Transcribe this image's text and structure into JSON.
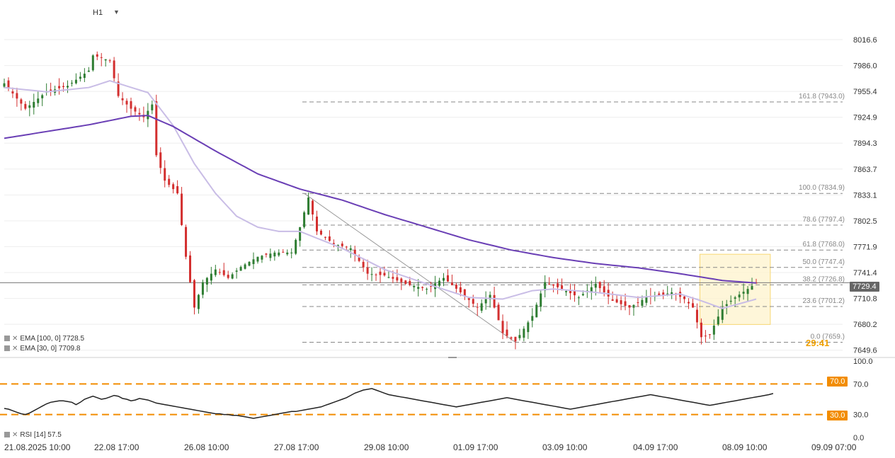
{
  "toolbar": {
    "timeframe": "H1"
  },
  "legend": {
    "ema100": "EMA  [100,  0]  7728.5",
    "ema30": "EMA  [30,  0]  7709.8",
    "rsi": "RSI  [14]  57.5"
  },
  "colors": {
    "bull": "#2e7d32",
    "bear": "#d32f2f",
    "ema100": "#6a3fb5",
    "ema30": "#c9bde6",
    "rsi": "#222222",
    "rsi_level": "#f28c00",
    "fib": "#888888",
    "highlight": "#f7d774"
  },
  "current_price": "7729.4",
  "chart_data": [
    {
      "type": "candlestick",
      "y_ticks": [
        "8016.6",
        "7986.0",
        "7955.4",
        "7924.9",
        "7894.3",
        "7863.7",
        "7833.1",
        "7802.5",
        "7771.9",
        "7741.4",
        "7710.8",
        "7680.2",
        "7649.6"
      ],
      "ylim": [
        7641,
        8030
      ],
      "x_tick_labels": [
        "21.08.2025  10:00",
        "22.08  17:00",
        "26.08  10:00",
        "27.08  17:00",
        "29.08  10:00",
        "01.09  17:00",
        "03.09  10:00",
        "04.09  17:00",
        "08.09  10:00",
        "09.09  07:00"
      ],
      "fibonacci": [
        {
          "label": "161.8 (7943.0)",
          "value": 7943.0
        },
        {
          "label": "100.0 (7834.9)",
          "value": 7834.9
        },
        {
          "label": "78.6 (7797.4)",
          "value": 7797.4
        },
        {
          "label": "61.8 (7768.0)",
          "value": 7768.0
        },
        {
          "label": "50.0 (7747.4)",
          "value": 7747.4
        },
        {
          "label": "38.2 (7726.8)",
          "value": 7726.8
        },
        {
          "label": "23.6 (7701.2)",
          "value": 7701.2
        },
        {
          "label": "0.0 (7659.)",
          "value": 7659.0
        }
      ],
      "ema100_anchors": [
        [
          0,
          7900
        ],
        [
          10,
          7908
        ],
        [
          20,
          7916
        ],
        [
          30,
          7926
        ],
        [
          34,
          7927
        ],
        [
          40,
          7914
        ],
        [
          50,
          7885
        ],
        [
          60,
          7858
        ],
        [
          70,
          7840
        ],
        [
          80,
          7827
        ],
        [
          90,
          7810
        ],
        [
          100,
          7795
        ],
        [
          110,
          7780
        ],
        [
          120,
          7768
        ],
        [
          130,
          7759
        ],
        [
          140,
          7752
        ],
        [
          150,
          7747
        ],
        [
          160,
          7740
        ],
        [
          170,
          7732
        ],
        [
          178,
          7729
        ]
      ],
      "ema30_anchors": [
        [
          0,
          7960
        ],
        [
          10,
          7955
        ],
        [
          20,
          7960
        ],
        [
          25,
          7968
        ],
        [
          34,
          7954
        ],
        [
          40,
          7915
        ],
        [
          45,
          7870
        ],
        [
          50,
          7835
        ],
        [
          55,
          7808
        ],
        [
          60,
          7795
        ],
        [
          65,
          7790
        ],
        [
          70,
          7790
        ],
        [
          80,
          7770
        ],
        [
          90,
          7745
        ],
        [
          100,
          7728
        ],
        [
          110,
          7712
        ],
        [
          118,
          7710
        ],
        [
          125,
          7720
        ],
        [
          130,
          7722
        ],
        [
          140,
          7718
        ],
        [
          150,
          7712
        ],
        [
          160,
          7716
        ],
        [
          165,
          7708
        ],
        [
          170,
          7699
        ],
        [
          178,
          7710
        ]
      ],
      "price_anchors": [
        [
          0,
          7965
        ],
        [
          5,
          7935
        ],
        [
          10,
          7955
        ],
        [
          15,
          7962
        ],
        [
          20,
          7980
        ],
        [
          21,
          7998
        ],
        [
          25,
          7992
        ],
        [
          27,
          7950
        ],
        [
          30,
          7935
        ],
        [
          33,
          7925
        ],
        [
          35,
          7940
        ],
        [
          36,
          7880
        ],
        [
          38,
          7850
        ],
        [
          41,
          7835
        ],
        [
          43,
          7760
        ],
        [
          45,
          7700
        ],
        [
          47,
          7730
        ],
        [
          50,
          7745
        ],
        [
          53,
          7735
        ],
        [
          56,
          7748
        ],
        [
          60,
          7760
        ],
        [
          64,
          7765
        ],
        [
          68,
          7765
        ],
        [
          70,
          7795
        ],
        [
          72,
          7830
        ],
        [
          74,
          7790
        ],
        [
          78,
          7775
        ],
        [
          82,
          7770
        ],
        [
          86,
          7740
        ],
        [
          90,
          7738
        ],
        [
          95,
          7728
        ],
        [
          100,
          7722
        ],
        [
          104,
          7735
        ],
        [
          108,
          7718
        ],
        [
          112,
          7700
        ],
        [
          115,
          7715
        ],
        [
          118,
          7670
        ],
        [
          121,
          7660
        ],
        [
          125,
          7690
        ],
        [
          128,
          7730
        ],
        [
          132,
          7722
        ],
        [
          136,
          7712
        ],
        [
          140,
          7728
        ],
        [
          144,
          7708
        ],
        [
          148,
          7700
        ],
        [
          152,
          7712
        ],
        [
          156,
          7715
        ],
        [
          158,
          7718
        ],
        [
          161,
          7710
        ],
        [
          163,
          7700
        ],
        [
          165,
          7665
        ],
        [
          167,
          7668
        ],
        [
          170,
          7700
        ],
        [
          173,
          7712
        ],
        [
          176,
          7722
        ],
        [
          178,
          7729
        ]
      ],
      "highlight_box": {
        "from_index": 165,
        "to_index": 181,
        "y_top": 7763,
        "y_bottom": 7680,
        "label": "29:41"
      }
    },
    {
      "type": "line",
      "name": "RSI",
      "ylim": [
        0,
        100
      ],
      "y_ticks": [
        "100.0",
        "70.0",
        "30.0",
        "0.0"
      ],
      "levels": [
        70.0,
        30.0
      ],
      "level_labels": [
        "70.0",
        "30.0"
      ],
      "values": [
        38,
        37,
        35,
        33,
        31,
        30,
        32,
        35,
        38,
        41,
        44,
        46,
        47,
        48,
        48,
        47,
        46,
        43,
        46,
        50,
        52,
        54,
        52,
        50,
        51,
        53,
        55,
        54,
        51,
        50,
        48,
        49,
        51,
        50,
        49,
        47,
        45,
        44,
        43,
        42,
        41,
        40,
        39,
        38,
        37,
        36,
        35,
        34,
        33,
        32,
        31,
        31,
        30,
        30,
        29,
        29,
        28,
        27,
        26,
        25,
        26,
        27,
        28,
        29,
        30,
        31,
        32,
        33,
        34,
        34,
        35,
        36,
        37,
        38,
        39,
        40,
        42,
        44,
        46,
        48,
        50,
        52,
        55,
        58,
        60,
        62,
        63,
        64,
        62,
        60,
        58,
        56,
        55,
        54,
        53,
        52,
        51,
        50,
        49,
        48,
        47,
        46,
        45,
        44,
        43,
        42,
        41,
        40,
        41,
        42,
        43,
        44,
        45,
        46,
        47,
        48,
        49,
        50,
        51,
        52,
        51,
        50,
        49,
        48,
        47,
        46,
        45,
        44,
        43,
        42,
        41,
        40,
        39,
        38,
        37,
        38,
        39,
        40,
        41,
        42,
        43,
        44,
        45,
        46,
        47,
        48,
        49,
        50,
        51,
        52,
        53,
        54,
        55,
        56,
        55,
        54,
        53,
        52,
        51,
        50,
        49,
        48,
        47,
        46,
        45,
        44,
        43,
        42,
        43,
        44,
        45,
        46,
        47,
        48,
        49,
        50,
        51,
        52,
        53,
        54,
        55,
        56,
        57.5
      ]
    }
  ]
}
